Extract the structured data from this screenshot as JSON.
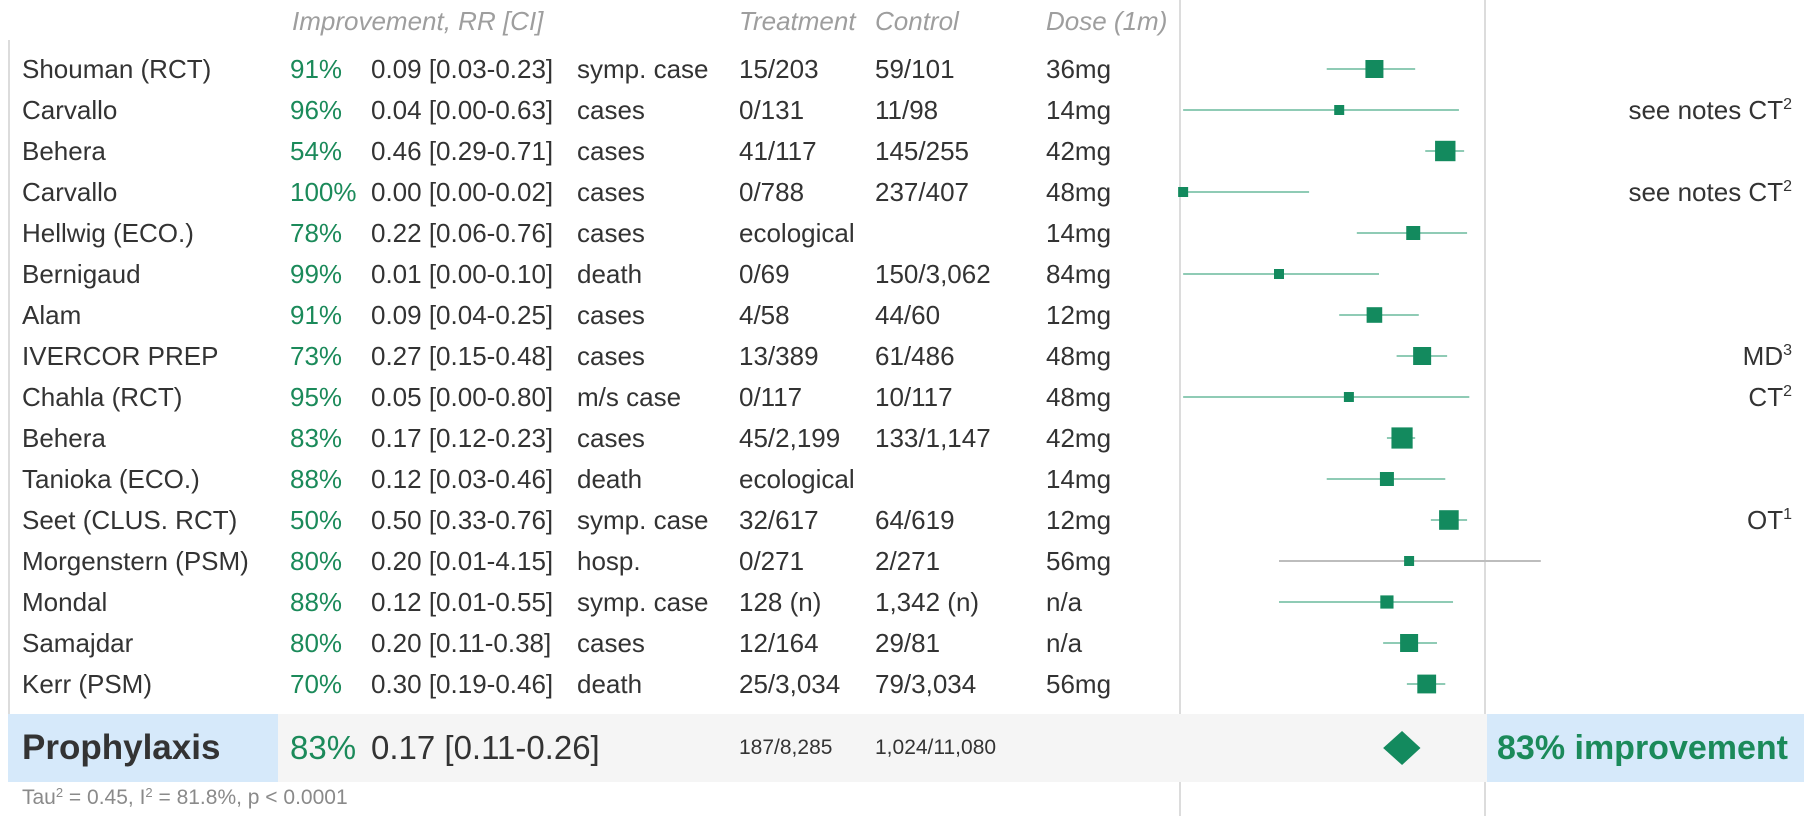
{
  "headers": {
    "improvement": "Improvement, RR [CI]",
    "treatment": "Treatment",
    "control": "Control",
    "dose": "Dose (1m)"
  },
  "rows": [
    {
      "name": "Shouman (RCT)",
      "improvement": "91%",
      "rr_ci": "0.09 [0.03-0.23]",
      "outcome": "symp. case",
      "treatment": "15/203",
      "control": "59/101",
      "dose": "36mg",
      "note": "",
      "note_sup": ""
    },
    {
      "name": "Carvallo",
      "improvement": "96%",
      "rr_ci": "0.04 [0.00-0.63]",
      "outcome": "cases",
      "treatment": "0/131",
      "control": "11/98",
      "dose": "14mg",
      "note": "see notes CT",
      "note_sup": "2"
    },
    {
      "name": "Behera",
      "improvement": "54%",
      "rr_ci": "0.46 [0.29-0.71]",
      "outcome": "cases",
      "treatment": "41/117",
      "control": "145/255",
      "dose": "42mg",
      "note": "",
      "note_sup": ""
    },
    {
      "name": "Carvallo",
      "improvement": "100%",
      "rr_ci": "0.00 [0.00-0.02]",
      "outcome": "cases",
      "treatment": "0/788",
      "control": "237/407",
      "dose": "48mg",
      "note": "see notes CT",
      "note_sup": "2"
    },
    {
      "name": "Hellwig (ECO.)",
      "improvement": "78%",
      "rr_ci": "0.22 [0.06-0.76]",
      "outcome": "cases",
      "treatment": "ecological",
      "control": "",
      "dose": "14mg",
      "note": "",
      "note_sup": ""
    },
    {
      "name": "Bernigaud",
      "improvement": "99%",
      "rr_ci": "0.01 [0.00-0.10]",
      "outcome": "death",
      "treatment": "0/69",
      "control": "150/3,062",
      "dose": "84mg",
      "note": "",
      "note_sup": ""
    },
    {
      "name": "Alam",
      "improvement": "91%",
      "rr_ci": "0.09 [0.04-0.25]",
      "outcome": "cases",
      "treatment": "4/58",
      "control": "44/60",
      "dose": "12mg",
      "note": "",
      "note_sup": ""
    },
    {
      "name": "IVERCOR PREP",
      "improvement": "73%",
      "rr_ci": "0.27 [0.15-0.48]",
      "outcome": "cases",
      "treatment": "13/389",
      "control": "61/486",
      "dose": "48mg",
      "note": "MD",
      "note_sup": "3"
    },
    {
      "name": "Chahla (RCT)",
      "improvement": "95%",
      "rr_ci": "0.05 [0.00-0.80]",
      "outcome": "m/s case",
      "treatment": "0/117",
      "control": "10/117",
      "dose": "48mg",
      "note": "CT",
      "note_sup": "2"
    },
    {
      "name": "Behera",
      "improvement": "83%",
      "rr_ci": "0.17 [0.12-0.23]",
      "outcome": "cases",
      "treatment": "45/2,199",
      "control": "133/1,147",
      "dose": "42mg",
      "note": "",
      "note_sup": ""
    },
    {
      "name": "Tanioka (ECO.)",
      "improvement": "88%",
      "rr_ci": "0.12 [0.03-0.46]",
      "outcome": "death",
      "treatment": "ecological",
      "control": "",
      "dose": "14mg",
      "note": "",
      "note_sup": ""
    },
    {
      "name": "Seet (CLUS. RCT)",
      "improvement": "50%",
      "rr_ci": "0.50 [0.33-0.76]",
      "outcome": "symp. case",
      "treatment": "32/617",
      "control": "64/619",
      "dose": "12mg",
      "note": "OT",
      "note_sup": "1"
    },
    {
      "name": "Morgenstern (PSM)",
      "improvement": "80%",
      "rr_ci": "0.20 [0.01-4.15]",
      "outcome": "hosp.",
      "treatment": "0/271",
      "control": "2/271",
      "dose": "56mg",
      "note": "",
      "note_sup": ""
    },
    {
      "name": "Mondal",
      "improvement": "88%",
      "rr_ci": "0.12 [0.01-0.55]",
      "outcome": "symp. case",
      "treatment": "128 (n)",
      "control": "1,342 (n)",
      "dose": "n/a",
      "note": "",
      "note_sup": ""
    },
    {
      "name": "Samajdar",
      "improvement": "80%",
      "rr_ci": "0.20 [0.11-0.38]",
      "outcome": "cases",
      "treatment": "12/164",
      "control": "29/81",
      "dose": "n/a",
      "note": "",
      "note_sup": ""
    },
    {
      "name": "Kerr (PSM)",
      "improvement": "70%",
      "rr_ci": "0.30 [0.19-0.46]",
      "outcome": "death",
      "treatment": "25/3,034",
      "control": "79/3,034",
      "dose": "56mg",
      "note": "",
      "note_sup": ""
    }
  ],
  "summary": {
    "name": "Prophylaxis",
    "improvement": "83%",
    "rr_ci": "0.17 [0.11-0.26]",
    "treatment": "187/8,285",
    "control": "1,024/11,080",
    "result": "83% improvement"
  },
  "stats": {
    "tau_label": "Tau",
    "tau_value": " = 0.45, I",
    "i2_value": " = 81.8%, p < 0.0001",
    "sup": "2"
  },
  "colors": {
    "accent": "#138a5e",
    "ci_line": "#8fcbb5",
    "neutral_line": "#bdbdbd",
    "summary_box": "#d6e9fa",
    "band": "#f5f5f5"
  },
  "chart_data": {
    "type": "forest",
    "title": "",
    "xlabel": "",
    "ylabel": "",
    "scale": "relative risk (ratio scale, RR = 1 at the reference line)",
    "categories": [
      "Shouman (RCT)",
      "Carvallo",
      "Behera",
      "Carvallo",
      "Hellwig (ECO.)",
      "Bernigaud",
      "Alam",
      "IVERCOR PREP",
      "Chahla (RCT)",
      "Behera",
      "Tanioka (ECO.)",
      "Seet (CLUS. RCT)",
      "Morgenstern (PSM)",
      "Mondal",
      "Samajdar",
      "Kerr (PSM)"
    ],
    "rr": [
      0.09,
      0.04,
      0.46,
      0.0,
      0.22,
      0.01,
      0.09,
      0.27,
      0.05,
      0.17,
      0.12,
      0.5,
      0.2,
      0.12,
      0.2,
      0.3
    ],
    "ci_lower": [
      0.03,
      0.0,
      0.29,
      0.0,
      0.06,
      0.0,
      0.04,
      0.15,
      0.0,
      0.12,
      0.03,
      0.33,
      0.01,
      0.01,
      0.11,
      0.19
    ],
    "ci_upper": [
      0.23,
      0.63,
      0.71,
      0.02,
      0.76,
      0.1,
      0.25,
      0.48,
      0.8,
      0.23,
      0.46,
      0.76,
      4.15,
      0.55,
      0.38,
      0.46
    ],
    "relative_weight": [
      0.75,
      0.25,
      0.9,
      0.25,
      0.5,
      0.25,
      0.6,
      0.75,
      0.25,
      0.95,
      0.5,
      0.85,
      0.25,
      0.45,
      0.75,
      0.8
    ],
    "significant": [
      true,
      true,
      true,
      true,
      true,
      true,
      true,
      true,
      true,
      true,
      true,
      true,
      false,
      true,
      true,
      true
    ],
    "pooled": {
      "rr": 0.17,
      "ci_lower": 0.11,
      "ci_upper": 0.26
    }
  }
}
